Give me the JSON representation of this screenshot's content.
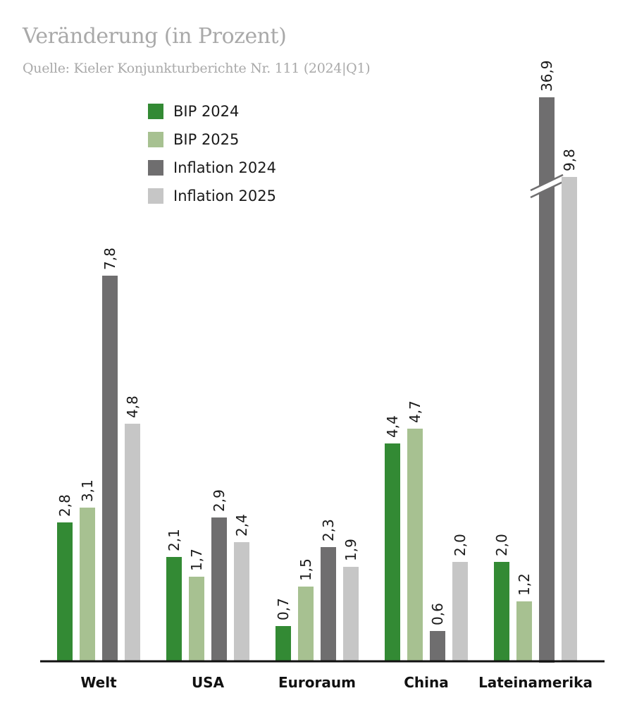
{
  "chart_data": {
    "type": "bar",
    "title": "Veränderung (in Prozent)",
    "subtitle": "Quelle: Kieler Konjunkturberichte Nr. 111 (2024|Q1)",
    "xlabel": "",
    "ylabel": "",
    "categories": [
      "Welt",
      "USA",
      "Euroraum",
      "China",
      "Lateinamerika"
    ],
    "series": [
      {
        "name": "BIP 2024",
        "color": "#338a34",
        "values": [
          2.8,
          2.1,
          0.7,
          4.4,
          2.0
        ],
        "labels": [
          "2,8",
          "2,1",
          "0,7",
          "4,4",
          "2,0"
        ]
      },
      {
        "name": "BIP 2025",
        "color": "#a7c191",
        "values": [
          3.1,
          1.7,
          1.5,
          4.7,
          1.2
        ],
        "labels": [
          "3,1",
          "1,7",
          "1,5",
          "4,7",
          "1,2"
        ]
      },
      {
        "name": "Inflation 2024",
        "color": "#6f6e6f",
        "values": [
          7.8,
          2.9,
          2.3,
          0.6,
          36.9
        ],
        "labels": [
          "7,8",
          "2,9",
          "2,3",
          "0,6",
          "36,9"
        ]
      },
      {
        "name": "Inflation 2025",
        "color": "#c6c6c6",
        "values": [
          4.8,
          2.4,
          1.9,
          2.0,
          9.8
        ],
        "labels": [
          "4,8",
          "2,4",
          "1,9",
          "2,0",
          "9,8"
        ]
      }
    ],
    "axis_break": true,
    "grid": false,
    "legend_placement": "top-left"
  }
}
